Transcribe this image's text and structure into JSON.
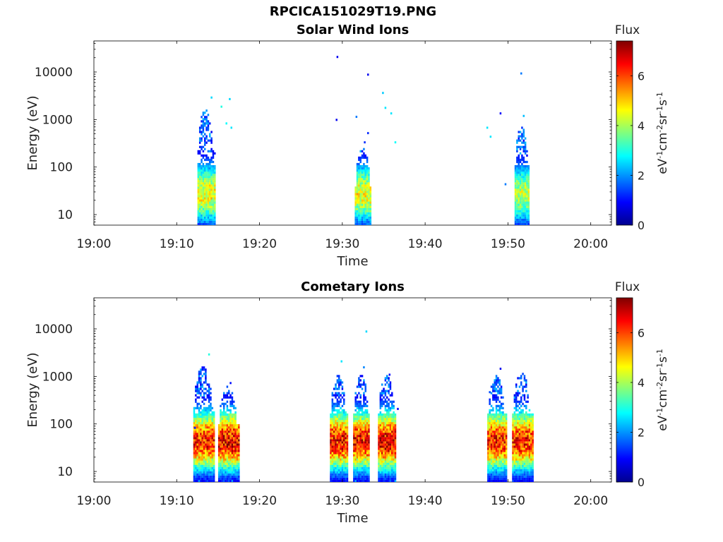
{
  "figure": {
    "title": "RPCICA151029T19.PNG"
  },
  "chart_data": [
    {
      "type": "heatmap",
      "title": "Solar Wind Ions",
      "xlabel": "Time",
      "ylabel": "Energy (eV)",
      "x_ticks": [
        "19:00",
        "19:10",
        "19:20",
        "19:30",
        "19:40",
        "19:50",
        "20:00"
      ],
      "x_range_minutes": [
        0,
        62.5
      ],
      "y_ticks": [
        10,
        100,
        1000,
        10000
      ],
      "y_tick_labels": [
        "10",
        "100",
        "1000",
        "10000"
      ],
      "y_scale": "log",
      "ylim": [
        6,
        45000
      ],
      "colorbar": {
        "label": "Flux",
        "unit": "eV-1cm-2sr-1s-1",
        "ticks": [
          0,
          2,
          4,
          6
        ],
        "range": [
          0,
          7.4
        ]
      },
      "bursts": [
        {
          "time_min": 12.5,
          "time_max": 14.5,
          "core_e": 25,
          "top_e": 1500,
          "peak_flux": 5.0
        },
        {
          "time_min": 31.5,
          "time_max": 33.5,
          "core_e": 25,
          "top_e": 250,
          "peak_flux": 5.0
        },
        {
          "time_min": 50.8,
          "time_max": 52.5,
          "core_e": 25,
          "top_e": 700,
          "peak_flux": 4.5
        }
      ],
      "scatter_points": [
        {
          "t": 14.1,
          "e": 2800,
          "flux": 2.5
        },
        {
          "t": 15.3,
          "e": 1800,
          "flux": 3.0
        },
        {
          "t": 16.3,
          "e": 2600,
          "flux": 2.5
        },
        {
          "t": 15.9,
          "e": 800,
          "flux": 2.8
        },
        {
          "t": 16.5,
          "e": 650,
          "flux": 2.6
        },
        {
          "t": 29.3,
          "e": 20000,
          "flux": 0.8
        },
        {
          "t": 33.0,
          "e": 8500,
          "flux": 0.8
        },
        {
          "t": 29.2,
          "e": 950,
          "flux": 0.8
        },
        {
          "t": 31.6,
          "e": 1100,
          "flux": 1.8
        },
        {
          "t": 34.8,
          "e": 3500,
          "flux": 2.4
        },
        {
          "t": 35.1,
          "e": 1700,
          "flux": 2.6
        },
        {
          "t": 35.8,
          "e": 1300,
          "flux": 2.6
        },
        {
          "t": 36.3,
          "e": 320,
          "flux": 2.8
        },
        {
          "t": 33.0,
          "e": 500,
          "flux": 1.2
        },
        {
          "t": 32.6,
          "e": 320,
          "flux": 1.2
        },
        {
          "t": 49.0,
          "e": 1300,
          "flux": 0.9
        },
        {
          "t": 51.5,
          "e": 9000,
          "flux": 1.8
        },
        {
          "t": 47.4,
          "e": 650,
          "flux": 2.6
        },
        {
          "t": 47.8,
          "e": 420,
          "flux": 2.6
        },
        {
          "t": 49.6,
          "e": 42,
          "flux": 1.8
        },
        {
          "t": 51.8,
          "e": 1150,
          "flux": 2.3
        }
      ]
    },
    {
      "type": "heatmap",
      "title": "Cometary Ions",
      "xlabel": "Time",
      "ylabel": "Energy (eV)",
      "x_ticks": [
        "19:00",
        "19:10",
        "19:20",
        "19:30",
        "19:40",
        "19:50",
        "20:00"
      ],
      "x_range_minutes": [
        0,
        62.5
      ],
      "y_ticks": [
        10,
        100,
        1000,
        10000
      ],
      "y_tick_labels": [
        "10",
        "100",
        "1000",
        "10000"
      ],
      "y_scale": "log",
      "ylim": [
        6,
        45000
      ],
      "colorbar": {
        "label": "Flux",
        "unit": "eV-1cm-2sr-1s-1",
        "ticks": [
          0,
          2,
          4,
          6
        ],
        "range": [
          0,
          7.4
        ]
      },
      "bursts": [
        {
          "time_min": 12.0,
          "time_max": 14.5,
          "core_e": 40,
          "top_e": 1500,
          "peak_flux": 6.8
        },
        {
          "time_min": 15.0,
          "time_max": 17.5,
          "core_e": 40,
          "top_e": 600,
          "peak_flux": 7.2
        },
        {
          "time_min": 28.5,
          "time_max": 30.6,
          "core_e": 40,
          "top_e": 1000,
          "peak_flux": 7.0
        },
        {
          "time_min": 31.3,
          "time_max": 33.3,
          "core_e": 40,
          "top_e": 1000,
          "peak_flux": 7.0
        },
        {
          "time_min": 34.3,
          "time_max": 36.5,
          "core_e": 40,
          "top_e": 1000,
          "peak_flux": 7.2
        },
        {
          "time_min": 47.5,
          "time_max": 49.8,
          "core_e": 40,
          "top_e": 1000,
          "peak_flux": 6.8
        },
        {
          "time_min": 50.5,
          "time_max": 53.0,
          "core_e": 40,
          "top_e": 1100,
          "peak_flux": 6.8
        }
      ],
      "scatter_points": [
        {
          "t": 13.8,
          "e": 2800,
          "flux": 3.0
        },
        {
          "t": 32.8,
          "e": 8500,
          "flux": 2.5
        },
        {
          "t": 29.8,
          "e": 2000,
          "flux": 2.6
        },
        {
          "t": 32.5,
          "e": 1500,
          "flux": 1.9
        },
        {
          "t": 35.6,
          "e": 1050,
          "flux": 0.9
        },
        {
          "t": 16.4,
          "e": 700,
          "flux": 1.0
        },
        {
          "t": 49.0,
          "e": 1400,
          "flux": 0.8
        },
        {
          "t": 47.7,
          "e": 450,
          "flux": 1.5
        },
        {
          "t": 36.6,
          "e": 200,
          "flux": 0.9
        },
        {
          "t": 12.1,
          "e": 80,
          "flux": 1.2
        }
      ]
    }
  ]
}
